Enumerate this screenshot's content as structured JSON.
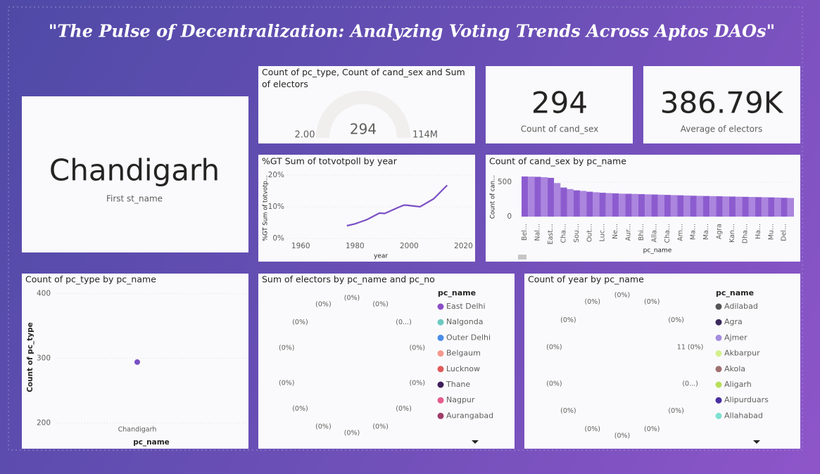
{
  "title": "\"The Pulse of Decentralization: Analyzing Voting Trends Across Aptos DAOs\"",
  "cards": [
    {
      "value": "Chandigarh",
      "label": "First st_name"
    },
    {
      "value": 294,
      "label": "Count of cand_sex"
    },
    {
      "value": "386.79K",
      "label": "Average of electors"
    }
  ],
  "chart_data": [
    {
      "type": "gauge",
      "title": "Count of pc_type, Count of cand_sex and Sum of electors",
      "value": 294,
      "min": {
        "value": 2,
        "label": "2.00"
      },
      "max": {
        "value": 114000000,
        "label": "114M"
      },
      "color": "#8c5ccf"
    },
    {
      "type": "line",
      "title": "%GT Sum of totvotpoll by year",
      "x_label": "year",
      "y_label": "%GT Sum of totvotp...",
      "x": [
        1977,
        1980,
        1984,
        1985,
        1989,
        1991,
        1996,
        1998,
        1999,
        2004,
        2009,
        2014
      ],
      "values": [
        4.0,
        4.6,
        5.8,
        6.2,
        8.0,
        7.9,
        9.8,
        10.5,
        10.5,
        10.0,
        12.5,
        16.8
      ],
      "color": "#7b4fc4",
      "xlim": [
        1955,
        2023
      ],
      "xticks": [
        1960,
        1980,
        2000,
        2020
      ],
      "ylim": [
        0,
        20
      ],
      "yticks": [
        {
          "value": 0,
          "label": "0%"
        },
        {
          "value": 10,
          "label": "10%"
        },
        {
          "value": 20,
          "label": "20%"
        }
      ],
      "grid": true
    },
    {
      "type": "bar",
      "title": "Count of cand_sex by pc_name",
      "x_label": "pc_name",
      "y_label": "Count of can...",
      "categories": [
        "Bel...",
        null,
        "Nal...",
        null,
        "East...",
        null,
        "Cha...",
        null,
        "Sou...",
        null,
        "Out...",
        null,
        "Luc...",
        null,
        "Ne...",
        null,
        "Aur...",
        null,
        "Bhi...",
        null,
        "Alla...",
        null,
        "Cha...",
        null,
        "Am...",
        null,
        "Ma...",
        null,
        "Ma...",
        null,
        "Agra",
        null,
        "Kan...",
        null,
        "Dha...",
        null,
        "Ha...",
        null,
        "Mu...",
        null,
        "Del...",
        null
      ],
      "values": [
        580,
        578,
        575,
        570,
        560,
        485,
        420,
        398,
        380,
        372,
        360,
        352,
        345,
        340,
        336,
        332,
        330,
        328,
        325,
        322,
        320,
        317,
        314,
        311,
        308,
        305,
        302,
        300,
        298,
        296,
        294,
        292,
        290,
        288,
        286,
        284,
        282,
        280,
        278,
        276,
        272,
        270
      ],
      "colors": [
        "#8c5ccf",
        "#ab85de"
      ],
      "ylim": [
        0,
        610
      ],
      "yticks": [
        0,
        500
      ],
      "grid": true
    },
    {
      "type": "scatter",
      "title": "Count of pc_type by pc_name",
      "x_label": "pc_name",
      "y_label": "Count of pc_type",
      "categories": [
        "Chandigarh"
      ],
      "values": [
        294
      ],
      "color": "#7b4fc4",
      "ylim": [
        196,
        408
      ],
      "yticks": [
        200,
        300,
        400
      ],
      "grid": true
    },
    {
      "type": "donut",
      "title": "Sum of electors by pc_name and pc_no",
      "legend_title": "pc_name",
      "series": [
        {
          "name": "East Delhi",
          "color": "#8a4fc8"
        },
        {
          "name": "Nalgonda",
          "color": "#6dcac0"
        },
        {
          "name": "Outer Delhi",
          "color": "#4a8de8"
        },
        {
          "name": "Belgaum",
          "color": "#f59a8c"
        },
        {
          "name": "Lucknow",
          "color": "#e05a5a"
        },
        {
          "name": "Thane",
          "color": "#3e1f5c"
        },
        {
          "name": "Nagpur",
          "color": "#e65d8c"
        },
        {
          "name": "Aurangabad",
          "color": "#a03c6a"
        }
      ],
      "data_labels": [
        "(0%)",
        "(0%)",
        "(0%)",
        "(0%)",
        "(0%)",
        "(0...)",
        "(0%)",
        "(0%)",
        "(0%)",
        "(0%)",
        "(0%)",
        "(0%)",
        "(0%)",
        "(0%)"
      ]
    },
    {
      "type": "donut",
      "title": "Count of year by pc_name",
      "legend_title": "pc_name",
      "series": [
        {
          "name": "Adilabad",
          "color": "#555555"
        },
        {
          "name": "Agra",
          "color": "#3b2a5c"
        },
        {
          "name": "Ajmer",
          "color": "#a58de0"
        },
        {
          "name": "Akbarpur",
          "color": "#d4f08c"
        },
        {
          "name": "Akola",
          "color": "#a07070"
        },
        {
          "name": "Aligarh",
          "color": "#b8e05a"
        },
        {
          "name": "Alipurduars",
          "color": "#4a2ea0"
        },
        {
          "name": "Allahabad",
          "color": "#7ee0d0"
        }
      ],
      "data_labels": [
        "(0%)",
        "(0%)",
        "(0%)",
        "(0%)",
        "(0%)",
        "(0%)",
        "11 (0%)",
        "(0%)",
        "(0%)",
        "(0%)",
        "(0%)",
        "(0%)",
        "(0%)",
        "(0...)"
      ]
    }
  ]
}
